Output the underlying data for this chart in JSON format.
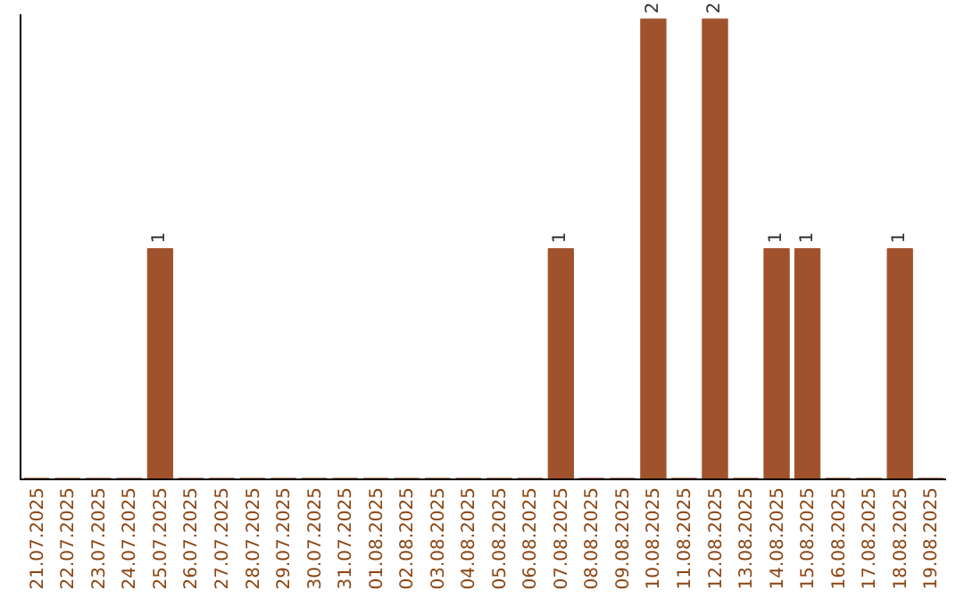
{
  "chart_data": {
    "type": "bar",
    "categories": [
      "21.07.2025",
      "22.07.2025",
      "23.07.2025",
      "24.07.2025",
      "25.07.2025",
      "26.07.2025",
      "27.07.2025",
      "28.07.2025",
      "29.07.2025",
      "30.07.2025",
      "31.07.2025",
      "01.08.2025",
      "02.08.2025",
      "03.08.2025",
      "04.08.2025",
      "05.08.2025",
      "06.08.2025",
      "07.08.2025",
      "08.08.2025",
      "09.08.2025",
      "10.08.2025",
      "11.08.2025",
      "12.08.2025",
      "13.08.2025",
      "14.08.2025",
      "15.08.2025",
      "16.08.2025",
      "17.08.2025",
      "18.08.2025",
      "19.08.2025"
    ],
    "values": [
      0,
      0,
      0,
      0,
      1,
      0,
      0,
      0,
      0,
      0,
      0,
      0,
      0,
      0,
      0,
      0,
      0,
      1,
      0,
      0,
      2,
      0,
      2,
      0,
      1,
      1,
      0,
      0,
      1,
      0
    ],
    "value_labels": [
      null,
      null,
      null,
      null,
      "1",
      null,
      null,
      null,
      null,
      null,
      null,
      null,
      null,
      null,
      null,
      null,
      null,
      "1",
      null,
      null,
      "2",
      null,
      "2",
      null,
      "1",
      "1",
      null,
      null,
      "1",
      null
    ],
    "color": "#a0522d",
    "tick_labels": "x"
  }
}
